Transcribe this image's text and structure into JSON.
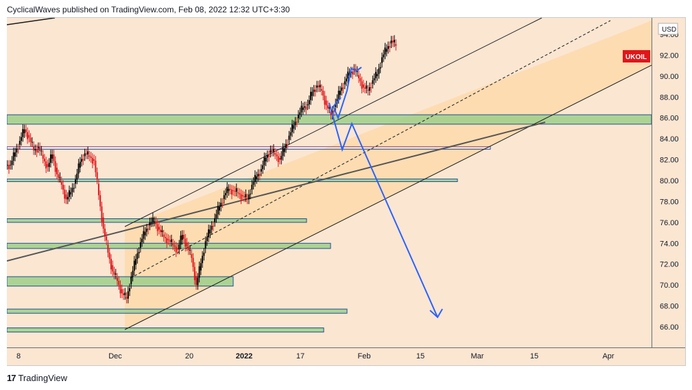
{
  "header": {
    "publisher_line": "CyclicalWaves published on TradingView.com, Feb 08, 2022 12:32 UTC+3:30"
  },
  "footer": {
    "brand": "TradingView",
    "logo_glyph": "17"
  },
  "chart_data": {
    "type": "candlestick",
    "symbol_badge": "UKOIL",
    "currency": "USD",
    "colors": {
      "up": "#000000",
      "down": "#e0161a",
      "badge": "#e0161a",
      "zone_fill": "#9ecf88",
      "zone_border": "#1f4f99",
      "channel_fill": "#fdd9ad",
      "projection": "#2962ff"
    },
    "y_ticks": [
      "66.00",
      "68.00",
      "70.00",
      "72.00",
      "74.00",
      "76.00",
      "78.00",
      "80.00",
      "82.00",
      "84.00",
      "86.00",
      "88.00",
      "90.00",
      "92.00",
      "94.00"
    ],
    "x_ticks": [
      "8",
      "Dec",
      "20",
      "2022",
      "17",
      "Feb",
      "15",
      "Mar",
      "15",
      "Apr"
    ],
    "ylim": [
      64.5,
      95.5
    ],
    "price_series_close": [
      81.5,
      82.7,
      83.8,
      84.9,
      84.1,
      82.9,
      83.2,
      82.1,
      81.3,
      82.5,
      80.6,
      79.6,
      78.2,
      78.9,
      80.1,
      81.8,
      82.6,
      82.3,
      81.9,
      78.6,
      75.4,
      73.1,
      71.3,
      70.4,
      69.2,
      68.7,
      70.8,
      72.5,
      74.1,
      75.1,
      76.0,
      76.1,
      75.3,
      74.6,
      74.3,
      73.8,
      73.4,
      74.8,
      73.7,
      72.6,
      70.0,
      72.1,
      74.2,
      75.3,
      76.4,
      77.5,
      78.6,
      79.2,
      79.0,
      78.8,
      78.5,
      78.2,
      79.6,
      80.4,
      81.1,
      82.2,
      82.9,
      82.5,
      82.0,
      83.1,
      84.3,
      85.3,
      86.3,
      87.0,
      87.3,
      88.5,
      89.1,
      88.6,
      87.2,
      86.3,
      87.4,
      88.6,
      89.5,
      90.3,
      90.7,
      89.8,
      88.9,
      88.6,
      89.6,
      90.2,
      91.8,
      92.6,
      93.4,
      92.9
    ],
    "zones": [
      {
        "low": 85.4,
        "high": 86.3,
        "x_end": "right"
      },
      {
        "low": 83.0,
        "high": 83.25,
        "x_end": "mid"
      },
      {
        "low": 79.9,
        "high": 80.15,
        "x_end": "mid"
      },
      {
        "low": 76.0,
        "high": 76.35,
        "x_end": "mid"
      },
      {
        "low": 73.5,
        "high": 74.0,
        "x_end": "mid"
      },
      {
        "low": 69.9,
        "high": 70.8,
        "x_end": "mid"
      },
      {
        "low": 67.3,
        "high": 67.7,
        "x_end": "mid"
      },
      {
        "low": 65.5,
        "high": 65.9,
        "x_end": "mid"
      }
    ],
    "grid": false,
    "legend": "none"
  }
}
